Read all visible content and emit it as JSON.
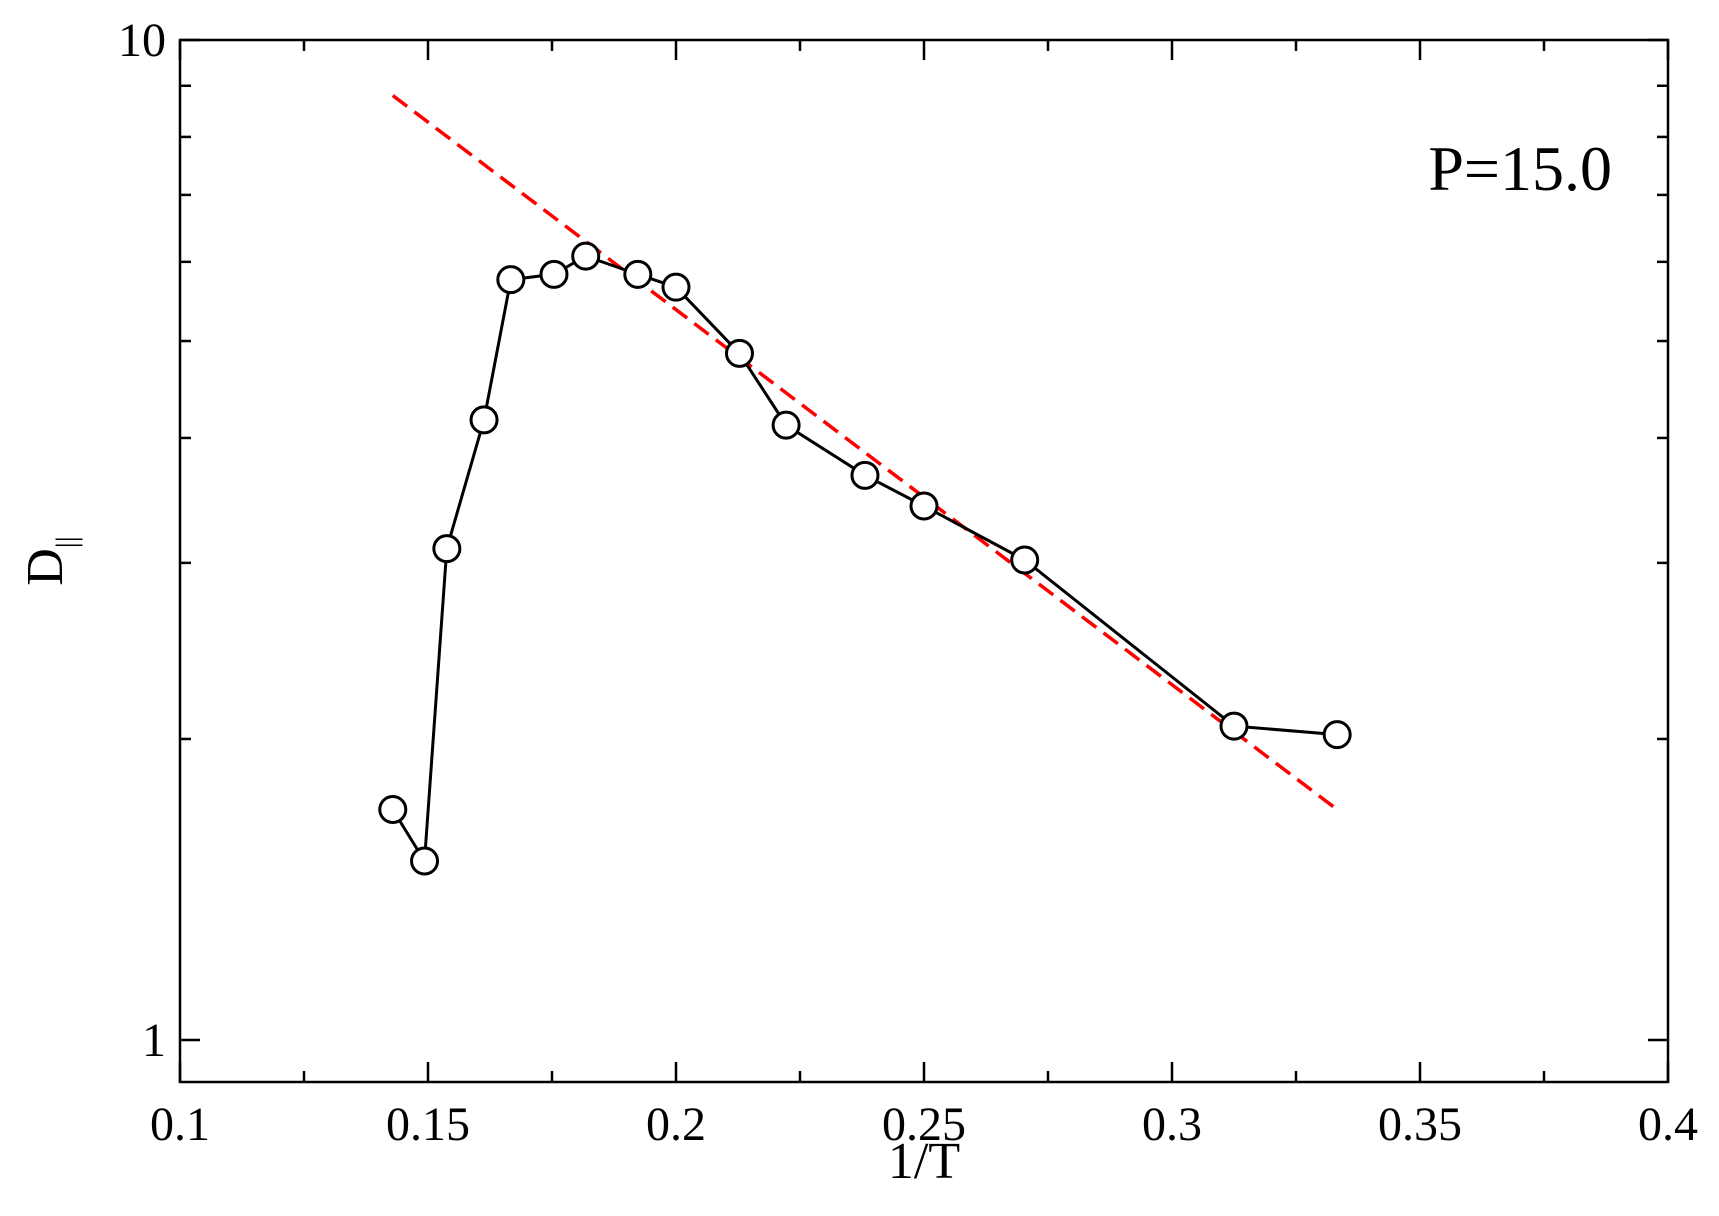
{
  "chart_data": {
    "type": "line",
    "title": "",
    "xlabel": "1/T",
    "ylabel": "D",
    "ylabel_subscript": "||",
    "xlim": [
      0.1,
      0.4
    ],
    "ylim": [
      1,
      10
    ],
    "yscale": "log",
    "x_ticks": [
      0.1,
      0.15,
      0.2,
      0.25,
      0.3,
      0.35,
      0.4
    ],
    "x_tick_labels": [
      "0.1",
      "0.15",
      "0.2",
      "0.25",
      "0.3",
      "0.35",
      "0.4"
    ],
    "y_ticks": [
      1,
      10
    ],
    "y_tick_labels": [
      "1",
      "10"
    ],
    "grid": false,
    "annotation": "P=15.0",
    "annotation_position": "top-right",
    "series": [
      {
        "style": "black solid line with open circle markers",
        "color": "#000000",
        "x": [
          0.1429,
          0.1493,
          0.1538,
          0.1613,
          0.1667,
          0.1754,
          0.1818,
          0.1923,
          0.2,
          0.2128,
          0.2222,
          0.2381,
          0.25,
          0.2703,
          0.3125,
          0.3333
        ],
        "y": [
          1.7,
          1.51,
          3.1,
          4.17,
          5.76,
          5.83,
          6.08,
          5.83,
          5.66,
          4.86,
          4.12,
          3.67,
          3.42,
          3.02,
          2.06,
          2.02
        ]
      },
      {
        "style": "red dashed fit line",
        "color": "#ff0000",
        "x": [
          0.1429,
          0.3333
        ],
        "y": [
          8.8,
          1.7
        ]
      }
    ]
  }
}
